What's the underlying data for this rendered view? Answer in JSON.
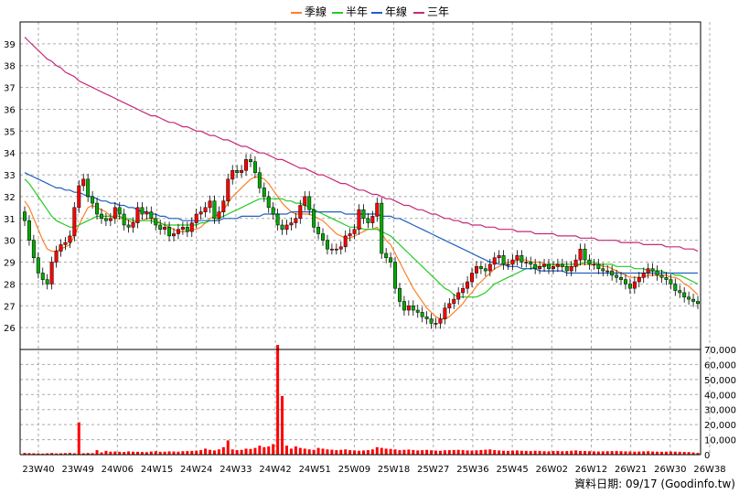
{
  "legend": [
    {
      "label": "季線",
      "color": "#ff7f27"
    },
    {
      "label": "半年",
      "color": "#22cc22"
    },
    {
      "label": "年線",
      "color": "#2060c0"
    },
    {
      "label": "三年",
      "color": "#c8287a"
    }
  ],
  "source_text": "資料日期: 09/17 (Goodinfo.tw)",
  "colors": {
    "up": "#ff0000",
    "down": "#00aa00",
    "volume": "#ff0000",
    "grid": "#aaaaaa"
  },
  "chart_data": [
    {
      "type": "candlestick",
      "title": "",
      "xlabel": "",
      "ylabel": "",
      "ylim": [
        25,
        40
      ],
      "yticks": [
        26,
        27,
        28,
        29,
        30,
        31,
        32,
        33,
        34,
        35,
        36,
        37,
        38,
        39
      ],
      "grid": true,
      "legend_position": "top-center",
      "x_tick_labels": [
        "23W40",
        "23W49",
        "24W06",
        "24W15",
        "24W24",
        "24W33",
        "24W42",
        "24W51",
        "25W09",
        "25W18",
        "25W27",
        "25W36",
        "25W45",
        "26W02",
        "26W12",
        "26W21",
        "26W30",
        "26W38"
      ],
      "close": [
        30.9,
        30.0,
        29.2,
        28.5,
        28.2,
        28.0,
        29.0,
        29.5,
        29.8,
        29.9,
        30.2,
        31.5,
        32.5,
        32.8,
        32.0,
        31.7,
        31.2,
        31.0,
        30.9,
        31.0,
        31.5,
        31.2,
        30.7,
        30.6,
        30.8,
        31.5,
        31.2,
        31.3,
        31.0,
        30.7,
        30.5,
        30.6,
        30.2,
        30.3,
        30.5,
        30.6,
        30.4,
        30.8,
        31.2,
        31.3,
        31.5,
        31.8,
        31.0,
        31.3,
        31.8,
        32.8,
        33.2,
        33.1,
        33.2,
        33.7,
        33.6,
        33.1,
        32.4,
        32.0,
        31.5,
        31.2,
        30.7,
        30.5,
        30.7,
        30.8,
        31.0,
        31.6,
        32.0,
        31.4,
        30.6,
        30.3,
        30.0,
        29.6,
        29.6,
        29.6,
        29.7,
        30.2,
        30.3,
        30.5,
        31.4,
        31.0,
        30.8,
        31.1,
        31.7,
        29.4,
        29.2,
        29.0,
        27.8,
        27.2,
        26.8,
        27.0,
        26.8,
        26.7,
        26.5,
        26.4,
        26.2,
        26.2,
        26.4,
        26.9,
        27.1,
        27.3,
        27.6,
        27.8,
        28.1,
        28.5,
        28.8,
        28.7,
        28.6,
        28.9,
        29.2,
        29.3,
        28.9,
        28.9,
        29.1,
        29.3,
        29.0,
        29.0,
        28.9,
        28.7,
        28.8,
        28.9,
        28.7,
        28.8,
        28.9,
        28.8,
        28.6,
        28.8,
        29.1,
        29.6,
        29.1,
        28.9,
        28.9,
        28.7,
        28.6,
        28.6,
        28.4,
        28.3,
        28.2,
        28.0,
        27.8,
        28.1,
        28.3,
        28.5,
        28.7,
        28.6,
        28.4,
        28.3,
        28.2,
        28.0,
        27.7,
        27.6,
        27.4,
        27.3,
        27.2,
        27.1
      ],
      "moving_averages": [
        {
          "name": "季線",
          "color": "#ff7f27",
          "values": [
            31.8,
            31.5,
            31.0,
            30.5,
            30.0,
            29.6,
            29.5,
            29.5,
            29.6,
            29.7,
            29.8,
            30.2,
            30.7,
            31.1,
            31.5,
            31.6,
            31.5,
            31.4,
            31.3,
            31.1,
            31.0,
            31.0,
            31.0,
            30.9,
            30.8,
            30.9,
            30.9,
            31.0,
            31.0,
            30.9,
            30.8,
            30.7,
            30.6,
            30.5,
            30.4,
            30.4,
            30.4,
            30.5,
            30.5,
            30.6,
            30.8,
            31.0,
            31.1,
            31.2,
            31.4,
            31.7,
            32.0,
            32.2,
            32.4,
            32.6,
            32.8,
            32.9,
            32.9,
            32.8,
            32.6,
            32.3,
            32.0,
            31.7,
            31.5,
            31.3,
            31.2,
            31.2,
            31.2,
            31.2,
            31.1,
            31.0,
            30.9,
            30.7,
            30.5,
            30.3,
            30.2,
            30.1,
            30.1,
            30.2,
            30.3,
            30.4,
            30.5,
            30.5,
            30.6,
            30.3,
            30.0,
            29.8,
            29.4,
            29.0,
            28.6,
            28.2,
            27.8,
            27.5,
            27.2,
            26.9,
            26.7,
            26.5,
            26.4,
            26.4,
            26.5,
            26.7,
            26.9,
            27.1,
            27.4,
            27.6,
            27.9,
            28.1,
            28.3,
            28.5,
            28.7,
            28.8,
            28.9,
            29.0,
            29.0,
            29.1,
            29.1,
            29.1,
            29.0,
            29.0,
            29.0,
            28.9,
            28.9,
            28.9,
            28.8,
            28.8,
            28.8,
            28.8,
            28.8,
            28.9,
            28.9,
            28.9,
            28.9,
            28.9,
            28.8,
            28.8,
            28.7,
            28.6,
            28.5,
            28.4,
            28.3,
            28.3,
            28.3,
            28.3,
            28.4,
            28.4,
            28.4,
            28.4,
            28.4,
            28.3,
            28.3,
            28.2,
            28.0,
            27.9,
            27.7,
            27.5
          ]
        },
        {
          "name": "半年",
          "color": "#22cc22",
          "values": [
            32.8,
            32.6,
            32.3,
            32.0,
            31.7,
            31.4,
            31.1,
            30.9,
            30.8,
            30.7,
            30.6,
            30.6,
            30.7,
            30.8,
            30.9,
            31.0,
            31.1,
            31.1,
            31.1,
            31.1,
            31.1,
            31.1,
            31.0,
            31.0,
            30.9,
            30.9,
            30.9,
            30.9,
            30.9,
            30.8,
            30.8,
            30.7,
            30.7,
            30.7,
            30.7,
            30.7,
            30.7,
            30.7,
            30.7,
            30.8,
            30.8,
            30.9,
            30.9,
            31.0,
            31.1,
            31.2,
            31.3,
            31.4,
            31.5,
            31.6,
            31.7,
            31.8,
            31.9,
            31.9,
            31.9,
            31.9,
            31.9,
            31.9,
            31.8,
            31.8,
            31.7,
            31.7,
            31.6,
            31.5,
            31.4,
            31.3,
            31.2,
            31.1,
            31.0,
            30.9,
            30.8,
            30.7,
            30.6,
            30.6,
            30.6,
            30.5,
            30.5,
            30.5,
            30.5,
            30.4,
            30.3,
            30.2,
            30.0,
            29.8,
            29.6,
            29.4,
            29.2,
            29.0,
            28.8,
            28.6,
            28.4,
            28.2,
            28.0,
            27.8,
            27.7,
            27.5,
            27.4,
            27.4,
            27.4,
            27.4,
            27.4,
            27.5,
            27.6,
            27.8,
            28.0,
            28.1,
            28.2,
            28.3,
            28.4,
            28.5,
            28.6,
            28.7,
            28.7,
            28.8,
            28.8,
            28.8,
            28.9,
            28.9,
            28.9,
            28.9,
            28.9,
            28.9,
            28.9,
            28.9,
            29.0,
            29.0,
            29.0,
            28.9,
            28.9,
            28.9,
            28.9,
            28.8,
            28.8,
            28.8,
            28.8,
            28.7,
            28.7,
            28.7,
            28.6,
            28.6,
            28.6,
            28.6,
            28.5,
            28.5,
            28.4,
            28.4,
            28.3,
            28.2,
            28.1,
            28.0
          ]
        },
        {
          "name": "年線",
          "color": "#2060c0",
          "values": [
            33.1,
            33.0,
            32.9,
            32.8,
            32.7,
            32.6,
            32.5,
            32.4,
            32.4,
            32.3,
            32.3,
            32.2,
            32.2,
            32.1,
            32.0,
            32.0,
            31.9,
            31.8,
            31.8,
            31.7,
            31.7,
            31.6,
            31.6,
            31.5,
            31.5,
            31.4,
            31.3,
            31.3,
            31.2,
            31.2,
            31.1,
            31.1,
            31.0,
            31.0,
            31.0,
            30.9,
            30.9,
            30.9,
            30.9,
            30.9,
            30.9,
            30.9,
            30.9,
            30.9,
            31.0,
            31.0,
            31.0,
            31.0,
            31.1,
            31.1,
            31.1,
            31.1,
            31.1,
            31.2,
            31.2,
            31.2,
            31.2,
            31.2,
            31.2,
            31.3,
            31.3,
            31.3,
            31.3,
            31.3,
            31.3,
            31.3,
            31.3,
            31.3,
            31.3,
            31.3,
            31.3,
            31.2,
            31.2,
            31.2,
            31.2,
            31.2,
            31.2,
            31.2,
            31.2,
            31.1,
            31.1,
            31.1,
            31.0,
            31.0,
            30.9,
            30.8,
            30.7,
            30.6,
            30.5,
            30.4,
            30.3,
            30.2,
            30.1,
            30.0,
            29.9,
            29.8,
            29.7,
            29.6,
            29.5,
            29.4,
            29.3,
            29.2,
            29.1,
            29.0,
            29.0,
            28.9,
            28.9,
            28.8,
            28.8,
            28.8,
            28.7,
            28.7,
            28.7,
            28.7,
            28.6,
            28.6,
            28.6,
            28.6,
            28.6,
            28.6,
            28.5,
            28.5,
            28.5,
            28.5,
            28.5,
            28.5,
            28.5,
            28.5,
            28.5,
            28.5,
            28.5,
            28.5,
            28.5,
            28.5,
            28.5,
            28.5,
            28.5,
            28.5,
            28.5,
            28.5,
            28.5,
            28.5,
            28.5,
            28.5,
            28.5,
            28.5,
            28.5,
            28.5,
            28.5,
            28.5
          ]
        },
        {
          "name": "三年",
          "color": "#c8287a",
          "values": [
            39.3,
            39.1,
            38.9,
            38.7,
            38.5,
            38.3,
            38.2,
            38.0,
            37.9,
            37.7,
            37.6,
            37.5,
            37.3,
            37.2,
            37.1,
            37.0,
            36.9,
            36.8,
            36.7,
            36.6,
            36.5,
            36.4,
            36.3,
            36.2,
            36.1,
            36.0,
            35.9,
            35.8,
            35.7,
            35.7,
            35.6,
            35.5,
            35.4,
            35.4,
            35.3,
            35.2,
            35.2,
            35.1,
            35.0,
            35.0,
            34.9,
            34.8,
            34.8,
            34.7,
            34.6,
            34.6,
            34.5,
            34.4,
            34.3,
            34.3,
            34.2,
            34.1,
            34.0,
            34.0,
            33.9,
            33.8,
            33.7,
            33.7,
            33.6,
            33.5,
            33.4,
            33.3,
            33.3,
            33.2,
            33.1,
            33.0,
            33.0,
            32.9,
            32.8,
            32.7,
            32.6,
            32.6,
            32.5,
            32.4,
            32.3,
            32.3,
            32.2,
            32.1,
            32.1,
            32.0,
            31.9,
            31.9,
            31.8,
            31.7,
            31.6,
            31.6,
            31.5,
            31.4,
            31.4,
            31.3,
            31.2,
            31.2,
            31.1,
            31.0,
            31.0,
            30.9,
            30.9,
            30.8,
            30.8,
            30.7,
            30.7,
            30.7,
            30.6,
            30.6,
            30.6,
            30.5,
            30.5,
            30.5,
            30.5,
            30.4,
            30.4,
            30.4,
            30.4,
            30.3,
            30.3,
            30.3,
            30.3,
            30.3,
            30.2,
            30.2,
            30.2,
            30.2,
            30.2,
            30.1,
            30.1,
            30.1,
            30.1,
            30.0,
            30.0,
            30.0,
            30.0,
            30.0,
            29.9,
            29.9,
            29.9,
            29.9,
            29.9,
            29.8,
            29.8,
            29.8,
            29.8,
            29.8,
            29.7,
            29.7,
            29.7,
            29.7,
            29.6,
            29.6,
            29.6,
            29.5
          ]
        }
      ]
    },
    {
      "type": "bar",
      "title": "",
      "ylim": [
        0,
        70000
      ],
      "yticks": [
        0,
        10000,
        20000,
        30000,
        40000,
        50000,
        60000,
        70000
      ],
      "ytick_labels": [
        "0",
        "10,000",
        "20,000",
        "30,000",
        "40,000",
        "50,000",
        "60,000",
        "70,000"
      ],
      "grid": true,
      "values": [
        1200,
        1000,
        900,
        800,
        700,
        900,
        1100,
        800,
        900,
        1000,
        1200,
        900,
        21500,
        900,
        1100,
        1000,
        3000,
        1500,
        2500,
        2000,
        2100,
        1900,
        1800,
        2200,
        2000,
        1900,
        1800,
        1700,
        2100,
        2300,
        1900,
        2000,
        2200,
        2100,
        2000,
        2300,
        2400,
        2500,
        2600,
        3000,
        4000,
        3200,
        2800,
        3500,
        5000,
        9500,
        3500,
        3000,
        3200,
        4000,
        3800,
        4500,
        6000,
        5000,
        5500,
        7000,
        73000,
        39000,
        6000,
        4000,
        5500,
        4500,
        4000,
        3500,
        3200,
        4500,
        4000,
        3500,
        3300,
        3000,
        3200,
        3500,
        3000,
        2800,
        2600,
        2800,
        3000,
        3500,
        5000,
        4500,
        4000,
        3800,
        3500,
        3000,
        3200,
        3400,
        3100,
        2800,
        3000,
        3200,
        2900,
        2700,
        2600,
        2900,
        3000,
        3100,
        3200,
        3000,
        2800,
        2700,
        2900,
        3100,
        3300,
        3500,
        3000,
        2800,
        2600,
        2500,
        2700,
        2800,
        2600,
        2500,
        2400,
        2600,
        2500,
        2300,
        2200,
        2400,
        2500,
        2300,
        2400,
        2600,
        2800,
        2500,
        2400,
        2300,
        2200,
        2100,
        2200,
        2300,
        2400,
        2500,
        2300,
        2200,
        2100,
        2000,
        2100,
        2200,
        2300,
        2100,
        2000,
        1900,
        2000,
        2100,
        2000,
        1900,
        1800,
        1700,
        1500,
        1200
      ]
    }
  ]
}
